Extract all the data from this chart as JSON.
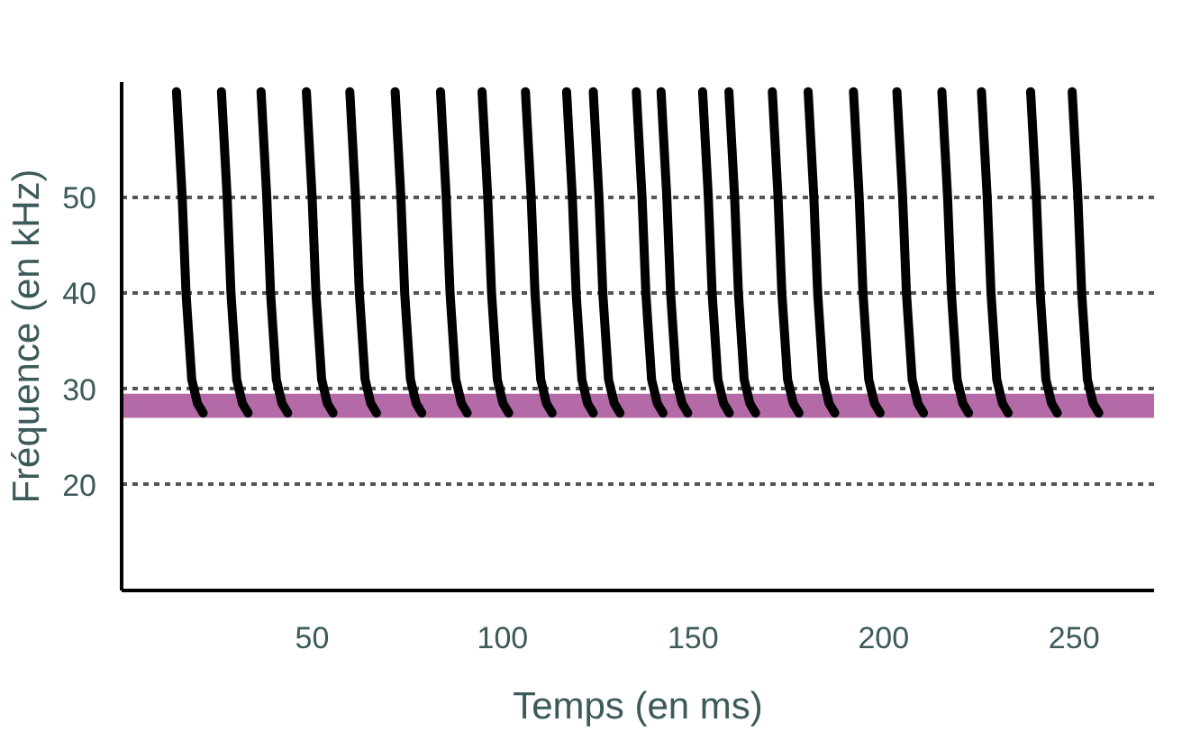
{
  "chart_data": {
    "type": "line",
    "xlabel": "Temps (en ms)",
    "ylabel": "Fréquence (en kHz)",
    "xlim": [
      0,
      271
    ],
    "ylim": [
      9,
      62
    ],
    "xticks": [
      50,
      100,
      150,
      200,
      250
    ],
    "yticks": [
      20,
      30,
      40,
      50
    ],
    "grid": "y",
    "line_style": "solid",
    "marker": "none",
    "bands": [
      {
        "axis": "y",
        "from": 27,
        "to": 29.5,
        "color": "#b56aa8"
      }
    ],
    "series": [
      {
        "color": "#000000",
        "x": [
          14.4,
          15.9,
          16.9,
          18.4,
          19.9,
          21.4
        ],
        "values": [
          61,
          50,
          40,
          31,
          28.5,
          27.5
        ]
      },
      {
        "color": "#000000",
        "x": [
          26.2,
          27.7,
          28.7,
          30.2,
          31.7,
          33.2
        ],
        "values": [
          61,
          50,
          40,
          31,
          28.5,
          27.5
        ]
      },
      {
        "color": "#000000",
        "x": [
          36.6,
          38.1,
          39.1,
          40.6,
          42.1,
          43.6
        ],
        "values": [
          61,
          50,
          40,
          31,
          28.5,
          27.5
        ]
      },
      {
        "color": "#000000",
        "x": [
          48.5,
          50,
          51,
          52.5,
          54,
          55.5
        ],
        "values": [
          61,
          50,
          40,
          31,
          28.5,
          27.5
        ]
      },
      {
        "color": "#000000",
        "x": [
          59.9,
          61.4,
          62.4,
          63.9,
          65.4,
          66.9
        ],
        "values": [
          61,
          50,
          40,
          31,
          28.5,
          27.5
        ]
      },
      {
        "color": "#000000",
        "x": [
          71.8,
          73.3,
          74.3,
          75.8,
          77.3,
          78.8
        ],
        "values": [
          61,
          50,
          40,
          31,
          28.5,
          27.5
        ]
      },
      {
        "color": "#000000",
        "x": [
          83.7,
          85.2,
          86.2,
          87.7,
          89.2,
          90.7
        ],
        "values": [
          61,
          50,
          40,
          31,
          28.5,
          27.5
        ]
      },
      {
        "color": "#000000",
        "x": [
          94.6,
          96.1,
          97.1,
          98.6,
          100.1,
          101.6
        ],
        "values": [
          61,
          50,
          40,
          31,
          28.5,
          27.5
        ]
      },
      {
        "color": "#000000",
        "x": [
          106,
          107.5,
          108.5,
          110,
          111.5,
          113
        ],
        "values": [
          61,
          50,
          40,
          31,
          28.5,
          27.5
        ]
      },
      {
        "color": "#000000",
        "x": [
          116.8,
          118.3,
          119.3,
          120.8,
          122.3,
          123.8
        ],
        "values": [
          61,
          50,
          40,
          31,
          28.5,
          27.5
        ]
      },
      {
        "color": "#000000",
        "x": [
          123.8,
          125.3,
          126.3,
          127.8,
          129.3,
          130.8
        ],
        "values": [
          61,
          50,
          40,
          31,
          28.5,
          27.5
        ]
      },
      {
        "color": "#000000",
        "x": [
          135.1,
          136.6,
          137.6,
          139.1,
          140.6,
          142.1
        ],
        "values": [
          61,
          50,
          40,
          31,
          28.5,
          27.5
        ]
      },
      {
        "color": "#000000",
        "x": [
          141.6,
          143.1,
          144.1,
          145.6,
          147.1,
          148.6
        ],
        "values": [
          61,
          50,
          40,
          31,
          28.5,
          27.5
        ]
      },
      {
        "color": "#000000",
        "x": [
          152.5,
          154,
          155,
          156.5,
          158,
          159.5
        ],
        "values": [
          61,
          50,
          40,
          31,
          28.5,
          27.5
        ]
      },
      {
        "color": "#000000",
        "x": [
          159.4,
          160.9,
          161.9,
          163.4,
          164.9,
          166.4
        ],
        "values": [
          61,
          50,
          40,
          31,
          28.5,
          27.5
        ]
      },
      {
        "color": "#000000",
        "x": [
          170.8,
          172.3,
          173.3,
          174.8,
          176.3,
          177.8
        ],
        "values": [
          61,
          50,
          40,
          31,
          28.5,
          27.5
        ]
      },
      {
        "color": "#000000",
        "x": [
          180.2,
          181.7,
          182.7,
          184.2,
          185.7,
          187.2
        ],
        "values": [
          61,
          50,
          40,
          31,
          28.5,
          27.5
        ]
      },
      {
        "color": "#000000",
        "x": [
          192.1,
          193.6,
          194.6,
          196.1,
          197.6,
          199.1
        ],
        "values": [
          61,
          50,
          40,
          31,
          28.5,
          27.5
        ]
      },
      {
        "color": "#000000",
        "x": [
          203.5,
          205,
          206,
          207.5,
          209,
          210.5
        ],
        "values": [
          61,
          50,
          40,
          31,
          28.5,
          27.5
        ]
      },
      {
        "color": "#000000",
        "x": [
          215.3,
          216.8,
          217.8,
          219.3,
          220.8,
          222.3
        ],
        "values": [
          61,
          50,
          40,
          31,
          28.5,
          27.5
        ]
      },
      {
        "color": "#000000",
        "x": [
          225.7,
          227.2,
          228.2,
          229.7,
          231.2,
          232.7
        ],
        "values": [
          61,
          50,
          40,
          31,
          28.5,
          27.5
        ]
      },
      {
        "color": "#000000",
        "x": [
          238.6,
          240.1,
          241.1,
          242.6,
          244.1,
          245.6
        ],
        "values": [
          61,
          50,
          40,
          31,
          28.5,
          27.5
        ]
      },
      {
        "color": "#000000",
        "x": [
          249.5,
          251,
          252,
          253.5,
          255,
          256.5
        ],
        "values": [
          61,
          50,
          40,
          31,
          28.5,
          27.5
        ]
      }
    ]
  }
}
